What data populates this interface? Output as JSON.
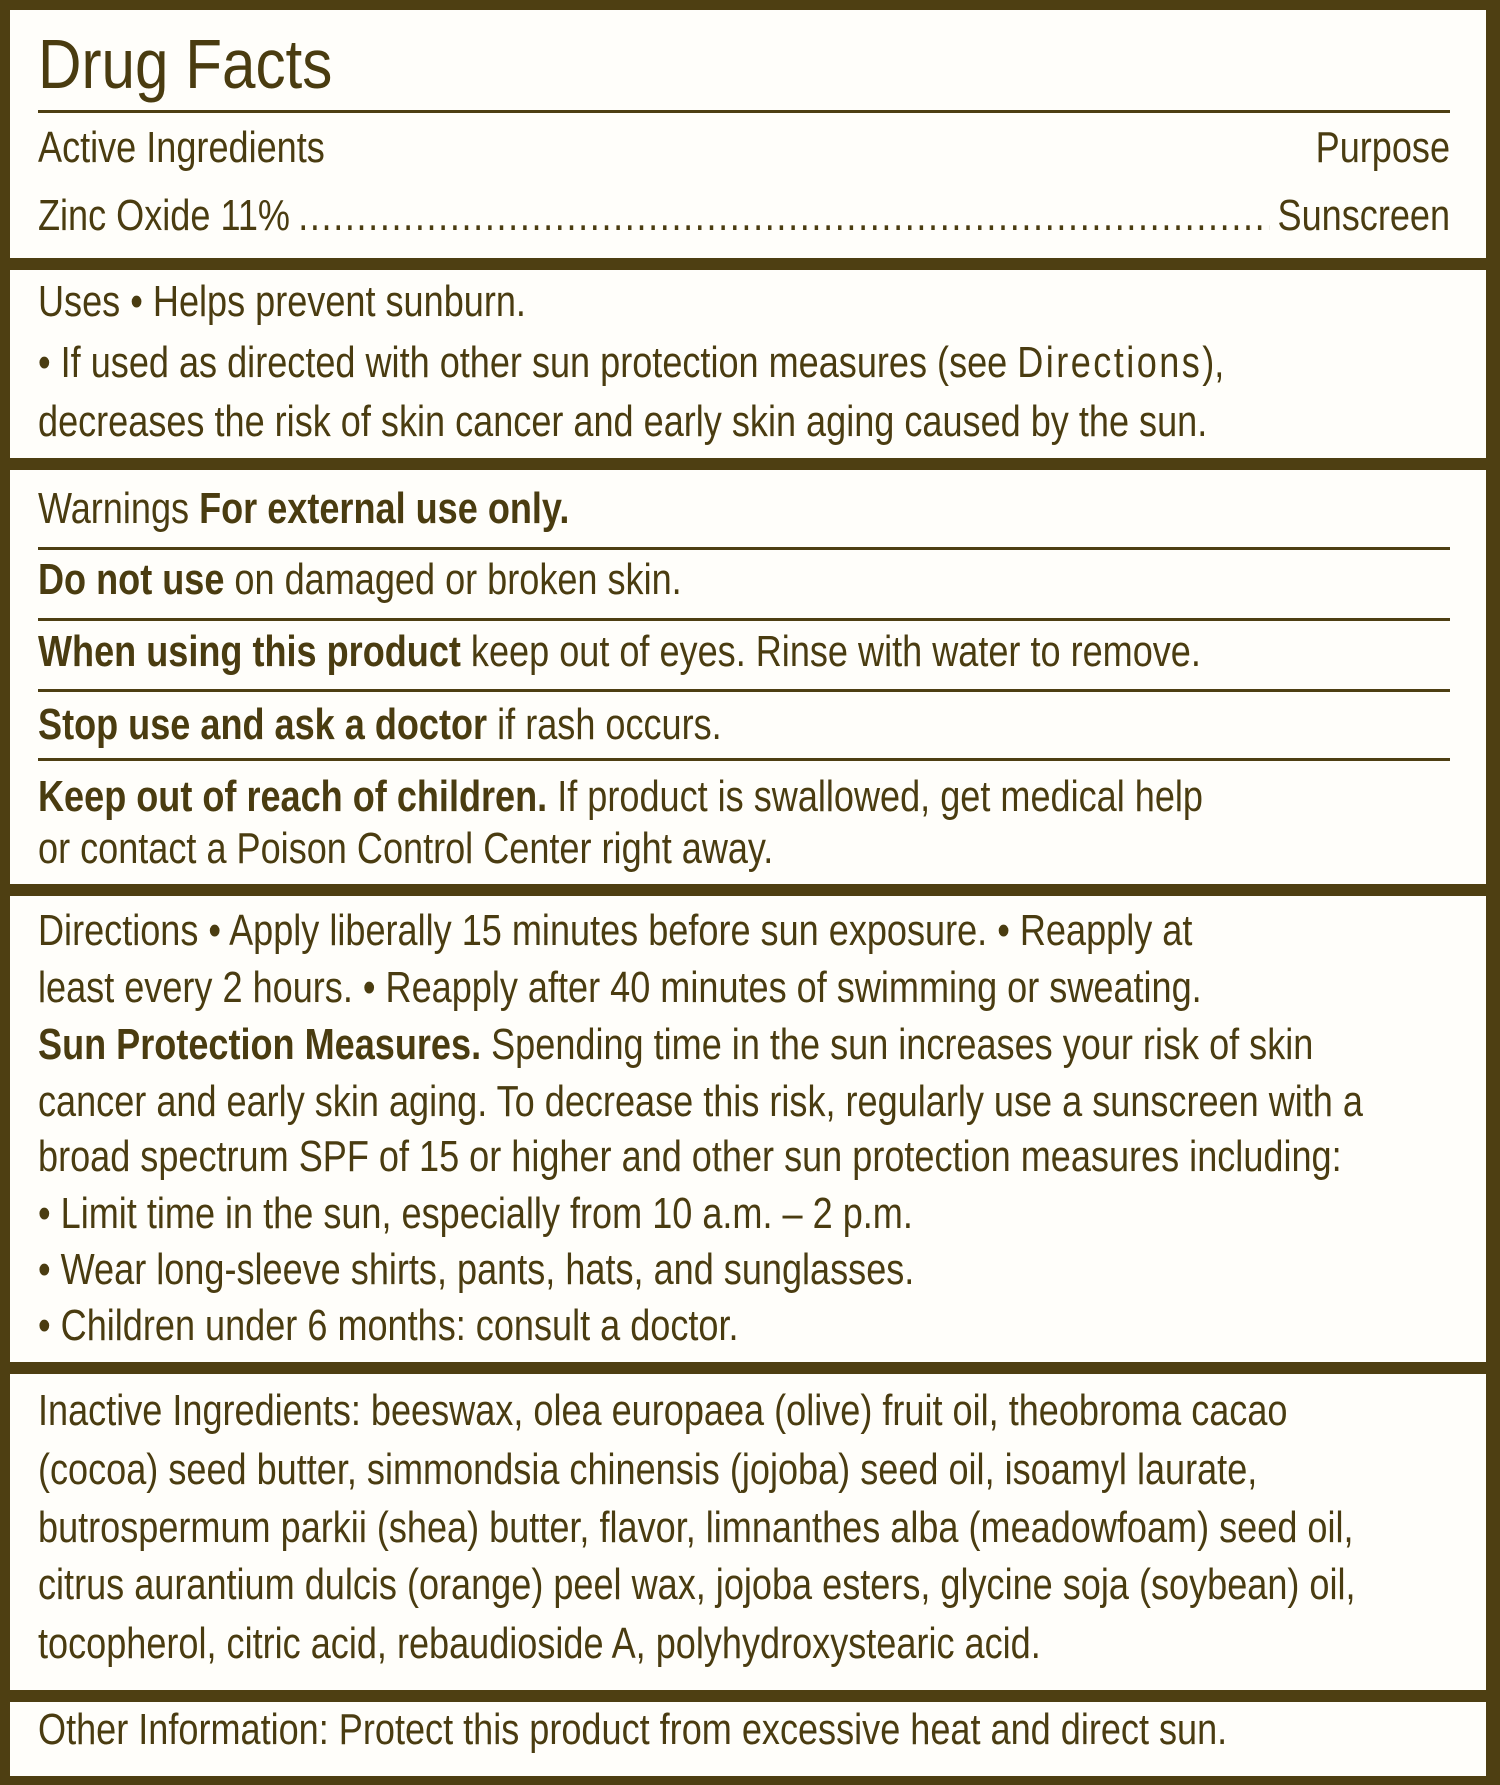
{
  "colors": {
    "border": "#4e3f12",
    "text": "#4a3c10",
    "background": "#fffefa"
  },
  "title": "Drug Facts",
  "active": {
    "header_left": "Active Ingredients",
    "header_right": "Purpose",
    "ingredient": "Zinc Oxide 11%",
    "purpose": "Sunscreen"
  },
  "uses": [
    [
      {
        "t": "Uses  •  Helps prevent sunburn."
      }
    ],
    [
      {
        "t": "•  If used as directed with other sun protection measures (see "
      },
      {
        "t": "Directions",
        "s": "wide"
      },
      {
        "t": "),"
      }
    ],
    [
      {
        "t": "decreases the risk of skin cancer and early skin aging caused by the sun."
      }
    ]
  ],
  "warnings": [
    [
      {
        "t": "Warnings  "
      },
      {
        "t": "For external use only.",
        "s": "b"
      }
    ],
    [
      {
        "t": "Do not use",
        "s": "b"
      },
      {
        "t": " on damaged or broken skin."
      }
    ],
    [
      {
        "t": "When using this product",
        "s": "b"
      },
      {
        "t": " keep out of eyes. Rinse with water to remove."
      }
    ],
    [
      {
        "t": "Stop use and ask a doctor",
        "s": "b"
      },
      {
        "t": " if rash occurs."
      }
    ],
    [
      {
        "t": "Keep out of reach of children.",
        "s": "b"
      },
      {
        "t": " If product is swallowed, get medical help"
      }
    ],
    [
      {
        "t": "or contact a Poison Control Center right away."
      }
    ]
  ],
  "directions": [
    [
      {
        "t": "Directions • Apply liberally 15 minutes before sun exposure.  •  Reapply at"
      }
    ],
    [
      {
        "t": "least every 2 hours.  •  Reapply after 40 minutes of swimming or sweating."
      }
    ],
    [
      {
        "t": "Sun Protection Measures.",
        "s": "b"
      },
      {
        "t": " Spending time in the sun increases your risk of skin"
      }
    ],
    [
      {
        "t": "cancer and early skin aging. To decrease this risk, regularly use a sunscreen with a"
      }
    ],
    [
      {
        "t": "broad spectrum SPF of 15 or higher and other sun protection measures including:"
      }
    ],
    [
      {
        "t": " •  Limit time in the sun, especially from 10 a.m. – 2 p.m."
      }
    ],
    [
      {
        "t": " •  Wear long-sleeve shirts, pants, hats, and sunglasses."
      }
    ],
    [
      {
        "t": " •  Children under 6 months: consult a doctor."
      }
    ]
  ],
  "inactive": [
    [
      {
        "t": "Inactive Ingredients: beeswax, olea europaea (olive) fruit oil, theobroma cacao"
      }
    ],
    [
      {
        "t": "(cocoa) seed butter, simmondsia chinensis (jojoba) seed oil, isoamyl laurate,"
      }
    ],
    [
      {
        "t": "butrospermum parkii (shea) butter, flavor, limnanthes alba (meadowfoam) seed oil,"
      }
    ],
    [
      {
        "t": "citrus aurantium dulcis (orange) peel wax, jojoba esters, glycine soja (soybean) oil,"
      }
    ],
    [
      {
        "t": "tocopherol, citric acid, rebaudioside A, polyhydroxystearic acid."
      }
    ]
  ],
  "other": [
    [
      {
        "t": "Other Information: Protect this product from excessive heat and direct sun."
      }
    ]
  ]
}
